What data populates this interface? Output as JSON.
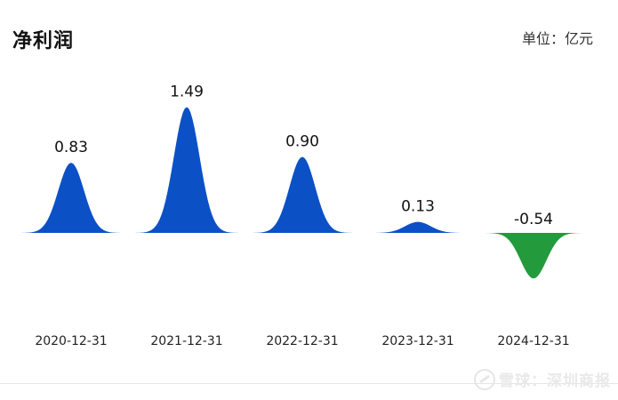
{
  "header": {
    "title": "净利润",
    "unit": "单位：亿元"
  },
  "watermark": "雪球：深圳商报",
  "colors": {
    "positive": "#0c50c6",
    "negative": "#239a3c",
    "label": "#111111"
  },
  "chart_data": {
    "type": "area",
    "title": "净利润",
    "unit": "亿元",
    "categories": [
      "2020-12-31",
      "2021-12-31",
      "2022-12-31",
      "2023-12-31",
      "2024-12-31"
    ],
    "values": [
      0.83,
      1.49,
      0.9,
      0.13,
      -0.54
    ],
    "value_labels": [
      "0.83",
      "1.49",
      "0.90",
      "0.13",
      "-0.54"
    ],
    "grid": false,
    "legend": "none"
  }
}
